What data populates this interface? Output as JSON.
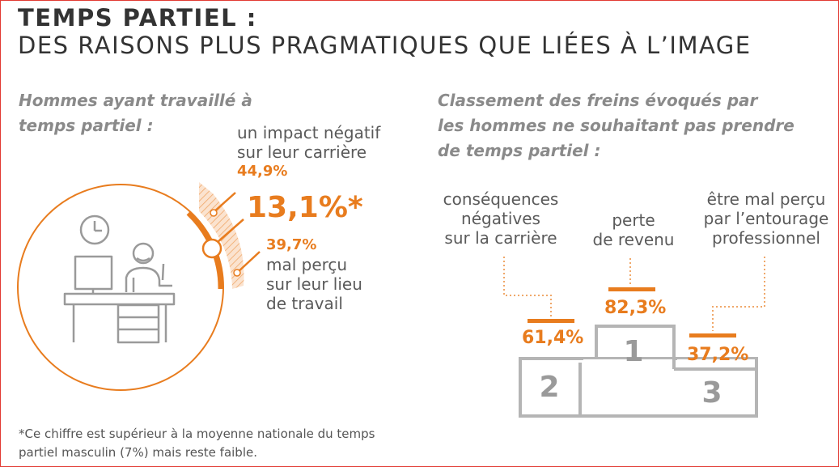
{
  "title": {
    "line1": "TEMPS PARTIEL :",
    "line2": "DES RAISONS PLUS PRAGMATIQUES QUE LIÉES À L’IMAGE"
  },
  "left": {
    "subtitle": [
      "Hommes ayant travaillé à",
      "temps partiel :"
    ],
    "center_value": "13,1%*",
    "impact": {
      "label": [
        "un impact négatif",
        "sur leur carrière"
      ],
      "value": "44,9%"
    },
    "mal_percu": {
      "value": "39,7%",
      "label": [
        "mal perçu",
        "sur leur lieu",
        "de travail"
      ]
    }
  },
  "right": {
    "subtitle": [
      "Classement des freins évoqués par",
      "les hommes ne souhaitant pas prendre",
      "de temps partiel :"
    ],
    "podium": [
      {
        "rank": "2",
        "label": [
          "conséquences",
          "négatives",
          "sur la carrière"
        ],
        "value": "61,4%"
      },
      {
        "rank": "1",
        "label": [
          "perte",
          "de revenu"
        ],
        "value": "82,3%"
      },
      {
        "rank": "3",
        "label": [
          "être mal perçu",
          "par l’entourage",
          "professionnel"
        ],
        "value": "37,2%"
      }
    ]
  },
  "footnote": [
    "*Ce chiffre est supérieur à la moyenne nationale du temps",
    "partiel masculin (7%) mais reste faible."
  ],
  "colors": {
    "accent": "#e87c1e",
    "text": "#333333",
    "gray": "#8a8a8a",
    "podium": "#b5b5b5",
    "border": "#e23a33"
  },
  "chart_data": [
    {
      "type": "pie",
      "title": "Hommes ayant travaillé à temps partiel :",
      "total_label": "13,1%*",
      "slices": [
        {
          "label": "un impact négatif sur leur carrière",
          "value": 44.9
        },
        {
          "label": "mal perçu sur leur lieu de travail",
          "value": 39.7
        }
      ]
    },
    {
      "type": "bar",
      "title": "Classement des freins évoqués par les hommes ne souhaitant pas prendre de temps partiel :",
      "categories": [
        "conséquences négatives sur la carrière",
        "perte de revenu",
        "être mal perçu par l’entourage professionnel"
      ],
      "ranks": [
        2,
        1,
        3
      ],
      "values": [
        61.4,
        82.3,
        37.2
      ]
    }
  ]
}
